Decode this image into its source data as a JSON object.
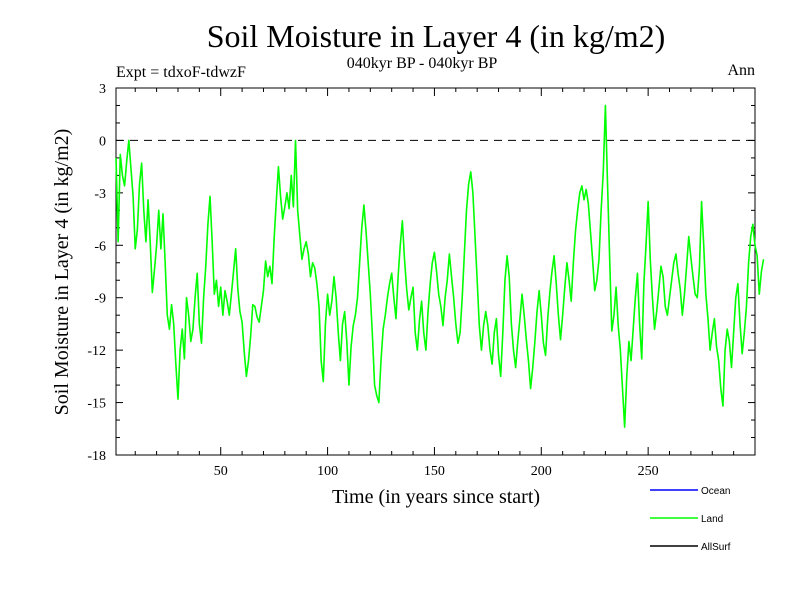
{
  "chart_data": {
    "type": "line",
    "title": "Soil Moisture in Layer 4 (in kg/m2)",
    "subtitle": "040kyr BP - 040kyr BP",
    "left_note": "Expt = tdxoF-tdwzF",
    "right_note": "Ann",
    "xlabel": "Time (in years since start)",
    "ylabel": "Soil Moisture in Layer 4 (in kg/m2)",
    "xlim": [
      1,
      300
    ],
    "ylim": [
      -18,
      3
    ],
    "x_ticks": [
      50,
      100,
      150,
      200,
      250
    ],
    "y_ticks": [
      3,
      0,
      -3,
      -6,
      -9,
      -12,
      -15,
      -18
    ],
    "reference_line": 0,
    "colors": {
      "Ocean": "#0000ff",
      "Land": "#00ff00",
      "AllSurf": "#000000"
    },
    "legend": [
      "Ocean",
      "Land",
      "AllSurf"
    ],
    "legend_placement": "bottom-right, below plot",
    "series": [
      {
        "name": "Land",
        "x_start": 1,
        "x_step": 1,
        "values": [
          -1.0,
          -5.8,
          -0.8,
          -2.0,
          -2.6,
          -1.2,
          0.0,
          -1.6,
          -3.2,
          -6.2,
          -5.1,
          -2.5,
          -1.3,
          -4.0,
          -5.8,
          -3.4,
          -5.8,
          -8.7,
          -7.4,
          -6.0,
          -4.0,
          -6.2,
          -4.2,
          -7.0,
          -10.0,
          -10.8,
          -9.4,
          -10.5,
          -12.8,
          -14.8,
          -12.0,
          -10.8,
          -12.5,
          -9.0,
          -10.0,
          -11.5,
          -10.8,
          -9.0,
          -7.6,
          -10.5,
          -11.6,
          -9.0,
          -7.2,
          -4.8,
          -3.2,
          -5.8,
          -8.8,
          -8.0,
          -9.5,
          -8.4,
          -10.0,
          -8.6,
          -9.2,
          -10.0,
          -8.8,
          -7.5,
          -6.2,
          -8.5,
          -9.8,
          -10.4,
          -12.1,
          -13.5,
          -12.6,
          -11.2,
          -9.4,
          -9.5,
          -10.1,
          -10.4,
          -9.5,
          -8.6,
          -6.9,
          -7.8,
          -7.2,
          -8.2,
          -5.6,
          -3.5,
          -1.5,
          -3.2,
          -4.5,
          -3.8,
          -3.0,
          -3.9,
          -2.0,
          -3.8,
          0.0,
          -4.0,
          -5.4,
          -6.8,
          -6.2,
          -5.8,
          -6.5,
          -7.8,
          -7.0,
          -7.3,
          -8.2,
          -9.5,
          -12.6,
          -13.8,
          -10.5,
          -8.8,
          -10.0,
          -9.2,
          -7.8,
          -9.0,
          -11.0,
          -12.6,
          -10.5,
          -9.8,
          -11.5,
          -14.0,
          -11.8,
          -10.6,
          -10.0,
          -9.0,
          -7.0,
          -5.0,
          -3.7,
          -5.2,
          -7.0,
          -8.8,
          -11.2,
          -14.0,
          -14.6,
          -15.0,
          -12.6,
          -10.8,
          -10.0,
          -9.0,
          -8.2,
          -7.6,
          -9.0,
          -10.2,
          -7.8,
          -6.0,
          -4.6,
          -6.8,
          -8.5,
          -9.7,
          -9.0,
          -8.4,
          -11.0,
          -12.0,
          -10.3,
          -9.2,
          -11.0,
          -12.0,
          -9.8,
          -8.2,
          -7.0,
          -6.4,
          -7.5,
          -8.8,
          -9.5,
          -10.6,
          -9.0,
          -8.0,
          -6.5,
          -7.8,
          -9.0,
          -10.5,
          -11.6,
          -11.0,
          -9.0,
          -6.5,
          -4.0,
          -2.5,
          -1.8,
          -3.0,
          -5.5,
          -8.0,
          -10.6,
          -12.0,
          -10.6,
          -9.8,
          -10.6,
          -12.0,
          -12.8,
          -11.0,
          -10.2,
          -12.3,
          -13.5,
          -11.0,
          -8.0,
          -6.6,
          -7.8,
          -10.5,
          -12.0,
          -13.0,
          -11.5,
          -10.2,
          -8.8,
          -10.0,
          -11.4,
          -12.6,
          -14.2,
          -13.0,
          -11.5,
          -9.8,
          -8.6,
          -10.0,
          -11.6,
          -12.3,
          -10.2,
          -8.7,
          -7.5,
          -6.6,
          -8.2,
          -10.0,
          -11.4,
          -10.0,
          -8.4,
          -7.0,
          -8.0,
          -9.2,
          -7.0,
          -5.2,
          -4.0,
          -3.0,
          -2.6,
          -3.4,
          -2.8,
          -3.6,
          -5.2,
          -6.8,
          -8.6,
          -8.0,
          -6.8,
          -4.0,
          -1.8,
          2.0,
          -2.5,
          -6.8,
          -10.9,
          -10.0,
          -8.4,
          -10.6,
          -12.0,
          -14.2,
          -16.4,
          -13.5,
          -11.5,
          -12.6,
          -10.8,
          -9.0,
          -7.6,
          -10.5,
          -12.5,
          -8.2,
          -6.0,
          -3.5,
          -6.8,
          -9.0,
          -10.8,
          -9.8,
          -8.5,
          -7.2,
          -7.8,
          -9.5,
          -10.0,
          -9.0,
          -8.0,
          -7.0,
          -6.5,
          -7.6,
          -8.5,
          -10.0,
          -8.8,
          -7.2,
          -5.5,
          -6.7,
          -7.8,
          -8.8,
          -9.0,
          -7.3,
          -3.5,
          -6.0,
          -8.8,
          -10.2,
          -12.0,
          -11.0,
          -10.2,
          -11.8,
          -12.6,
          -14.2,
          -15.2,
          -12.0,
          -10.8,
          -11.5,
          -13.0,
          -11.0,
          -9.0,
          -8.2,
          -10.5,
          -12.2,
          -11.0,
          -9.5,
          -7.0,
          -5.5,
          -4.8,
          -6.0,
          -6.6,
          -8.8,
          -7.5,
          -6.8
        ]
      }
    ]
  }
}
